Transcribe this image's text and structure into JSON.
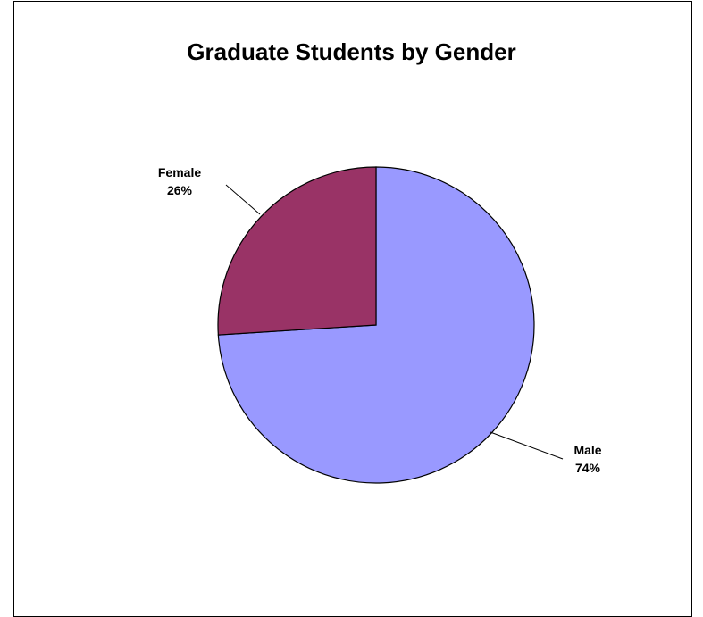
{
  "chart_data": {
    "type": "pie",
    "title": "Graduate Students by Gender",
    "slices": [
      {
        "label": "Male",
        "value": 74,
        "display": "74%",
        "color": "#9999ff"
      },
      {
        "label": "Female",
        "value": 26,
        "display": "26%",
        "color": "#993366"
      }
    ],
    "start_angle_deg": 0,
    "direction": "clockwise",
    "edge_color": "#000000",
    "legend": "none"
  }
}
